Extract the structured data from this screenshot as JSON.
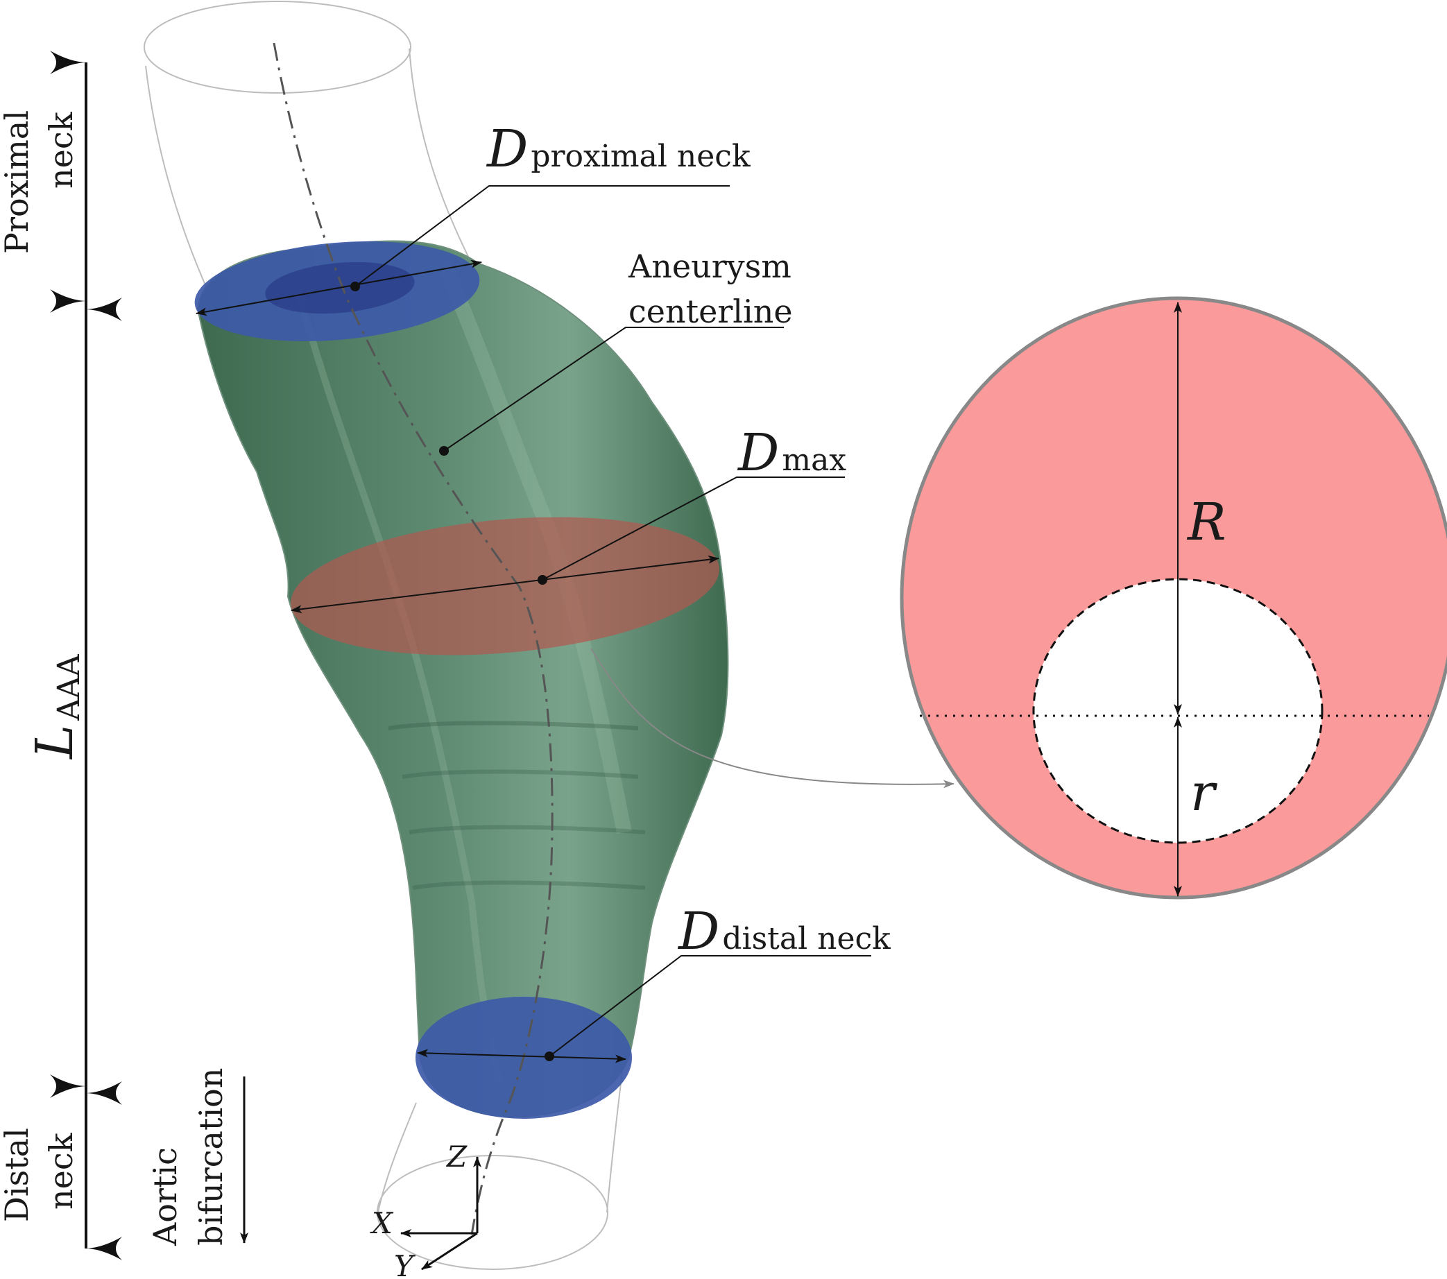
{
  "labels": {
    "proximal_neck_line1": "Proximal",
    "proximal_neck_line2": "neck",
    "l_aaa_symbol": "L",
    "l_aaa_subscript": "AAA",
    "distal_neck_line1": "Distal",
    "distal_neck_line2": "neck",
    "aortic_bifurcation_line1": "Aortic",
    "aortic_bifurcation_line2": "bifurcation",
    "d_proximal_symbol": "D",
    "d_proximal_subscript": "proximal neck",
    "aneurysm_centerline_line1": "Aneurysm",
    "aneurysm_centerline_line2": "centerline",
    "d_max_symbol": "D",
    "d_max_subscript": "max",
    "d_distal_symbol": "D",
    "d_distal_subscript": "distal neck",
    "outer_radius": "R",
    "inner_radius": "r",
    "axis_z": "Z",
    "axis_x": "X",
    "axis_y": "Y"
  },
  "colors": {
    "aneurysm_surface": "#4a7a5e",
    "neck_cross_section": "#3d5aa8",
    "max_cross_section": "#b05a50",
    "wall_section_fill": "#fb9a9a",
    "wall_section_stroke": "#888888"
  }
}
